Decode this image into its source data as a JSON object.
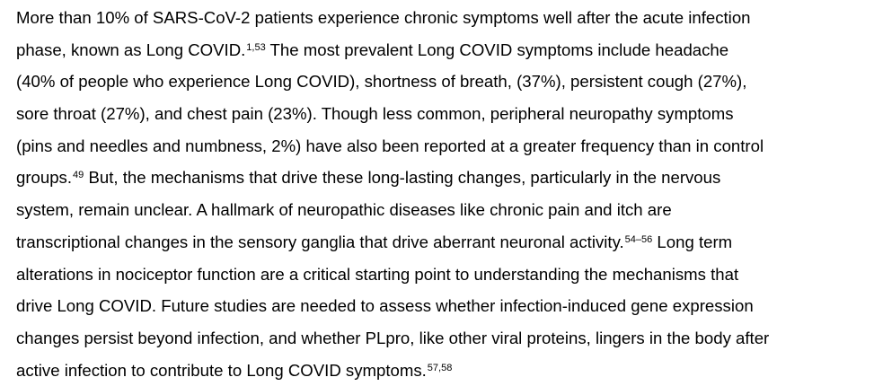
{
  "paragraph": {
    "lines": [
      {
        "parts": [
          {
            "text": "More than 10% of SARS-CoV-2 patients experience chronic symptoms well after the acute infection"
          }
        ]
      },
      {
        "parts": [
          {
            "text": "phase, known as Long COVID."
          },
          {
            "sup": "1,53"
          },
          {
            "text": " The most prevalent Long COVID symptoms include headache"
          }
        ]
      },
      {
        "parts": [
          {
            "text": "(40% of people who experience Long COVID), shortness of breath, (37%), persistent cough (27%),"
          }
        ]
      },
      {
        "parts": [
          {
            "text": "sore throat (27%), and chest pain (23%). Though less common, peripheral neuropathy symptoms"
          }
        ]
      },
      {
        "parts": [
          {
            "text": "(pins and needles and numbness, 2%) have also been reported at a greater frequency than in control"
          }
        ]
      },
      {
        "parts": [
          {
            "text": "groups."
          },
          {
            "sup": "49"
          },
          {
            "text": " But, the mechanisms that drive these long-lasting changes, particularly in the nervous"
          }
        ]
      },
      {
        "parts": [
          {
            "text": "system, remain unclear. A hallmark of neuropathic diseases like chronic pain and itch are"
          }
        ]
      },
      {
        "parts": [
          {
            "text": "transcriptional changes in the sensory ganglia that drive aberrant neuronal activity."
          },
          {
            "sup": "54–56"
          },
          {
            "text": "  Long term"
          }
        ]
      },
      {
        "parts": [
          {
            "text": "alterations in nociceptor function are a critical starting point to understanding the mechanisms that"
          }
        ]
      },
      {
        "parts": [
          {
            "text": "drive Long COVID. Future studies are needed to assess whether infection-induced gene expression"
          }
        ]
      },
      {
        "parts": [
          {
            "text": "changes persist beyond infection, and whether PLpro, like other viral proteins, lingers in the body after"
          }
        ]
      },
      {
        "parts": [
          {
            "text": "active infection to contribute to Long COVID symptoms."
          },
          {
            "sup": "57,58"
          }
        ]
      }
    ]
  }
}
